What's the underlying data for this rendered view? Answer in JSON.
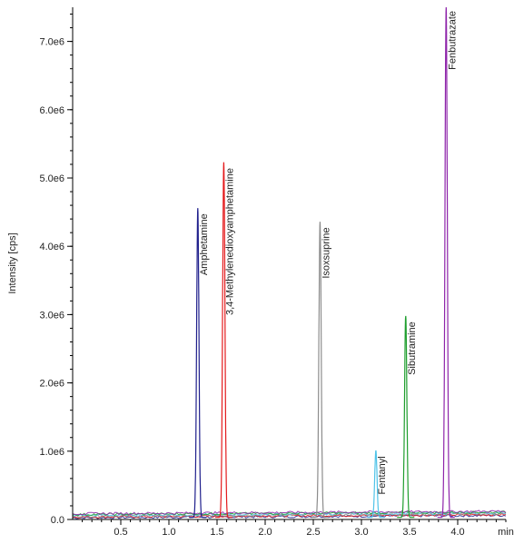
{
  "chart_data": {
    "type": "line",
    "title": "",
    "xlabel": "min",
    "ylabel": "Intensity [cps]",
    "xlim": [
      0.0,
      4.5
    ],
    "ylim": [
      0.0,
      7500000.0
    ],
    "grid": false,
    "x_ticks": [
      {
        "value": 0.5,
        "label": "0.5"
      },
      {
        "value": 1.0,
        "label": "1.0"
      },
      {
        "value": 1.5,
        "label": "1.5"
      },
      {
        "value": 2.0,
        "label": "2.0"
      },
      {
        "value": 2.5,
        "label": "2.5"
      },
      {
        "value": 3.0,
        "label": "3.0"
      },
      {
        "value": 3.5,
        "label": "3.5"
      },
      {
        "value": 4.0,
        "label": "4.0"
      }
    ],
    "y_ticks": [
      {
        "value": 0,
        "label": "0.0"
      },
      {
        "value": 1000000,
        "label": "1.0e6"
      },
      {
        "value": 2000000,
        "label": "2.0e6"
      },
      {
        "value": 3000000,
        "label": "3.0e6"
      },
      {
        "value": 4000000,
        "label": "4.0e6"
      },
      {
        "value": 5000000,
        "label": "5.0e6"
      },
      {
        "value": 6000000,
        "label": "6.0e6"
      },
      {
        "value": 7000000,
        "label": "7.0e6"
      }
    ],
    "series": [
      {
        "name": "Amphetamine",
        "color": "#1f1f8c",
        "rt": 1.3,
        "height": 4530000
      },
      {
        "name": "3,4-Methylenedioxyamphetamine",
        "color": "#e41a1c",
        "rt": 1.57,
        "height": 5200000
      },
      {
        "name": "Isoxsuprine",
        "color": "#8c8c8c",
        "rt": 2.57,
        "height": 4330000
      },
      {
        "name": "Fentanyl",
        "color": "#4fc3e8",
        "rt": 3.15,
        "height": 980000
      },
      {
        "name": "Sibutramine",
        "color": "#1f9e2e",
        "rt": 3.46,
        "height": 2950000
      },
      {
        "name": "Fenbutrazate",
        "color": "#8e24aa",
        "rt": 3.88,
        "height": 7500000
      }
    ]
  }
}
